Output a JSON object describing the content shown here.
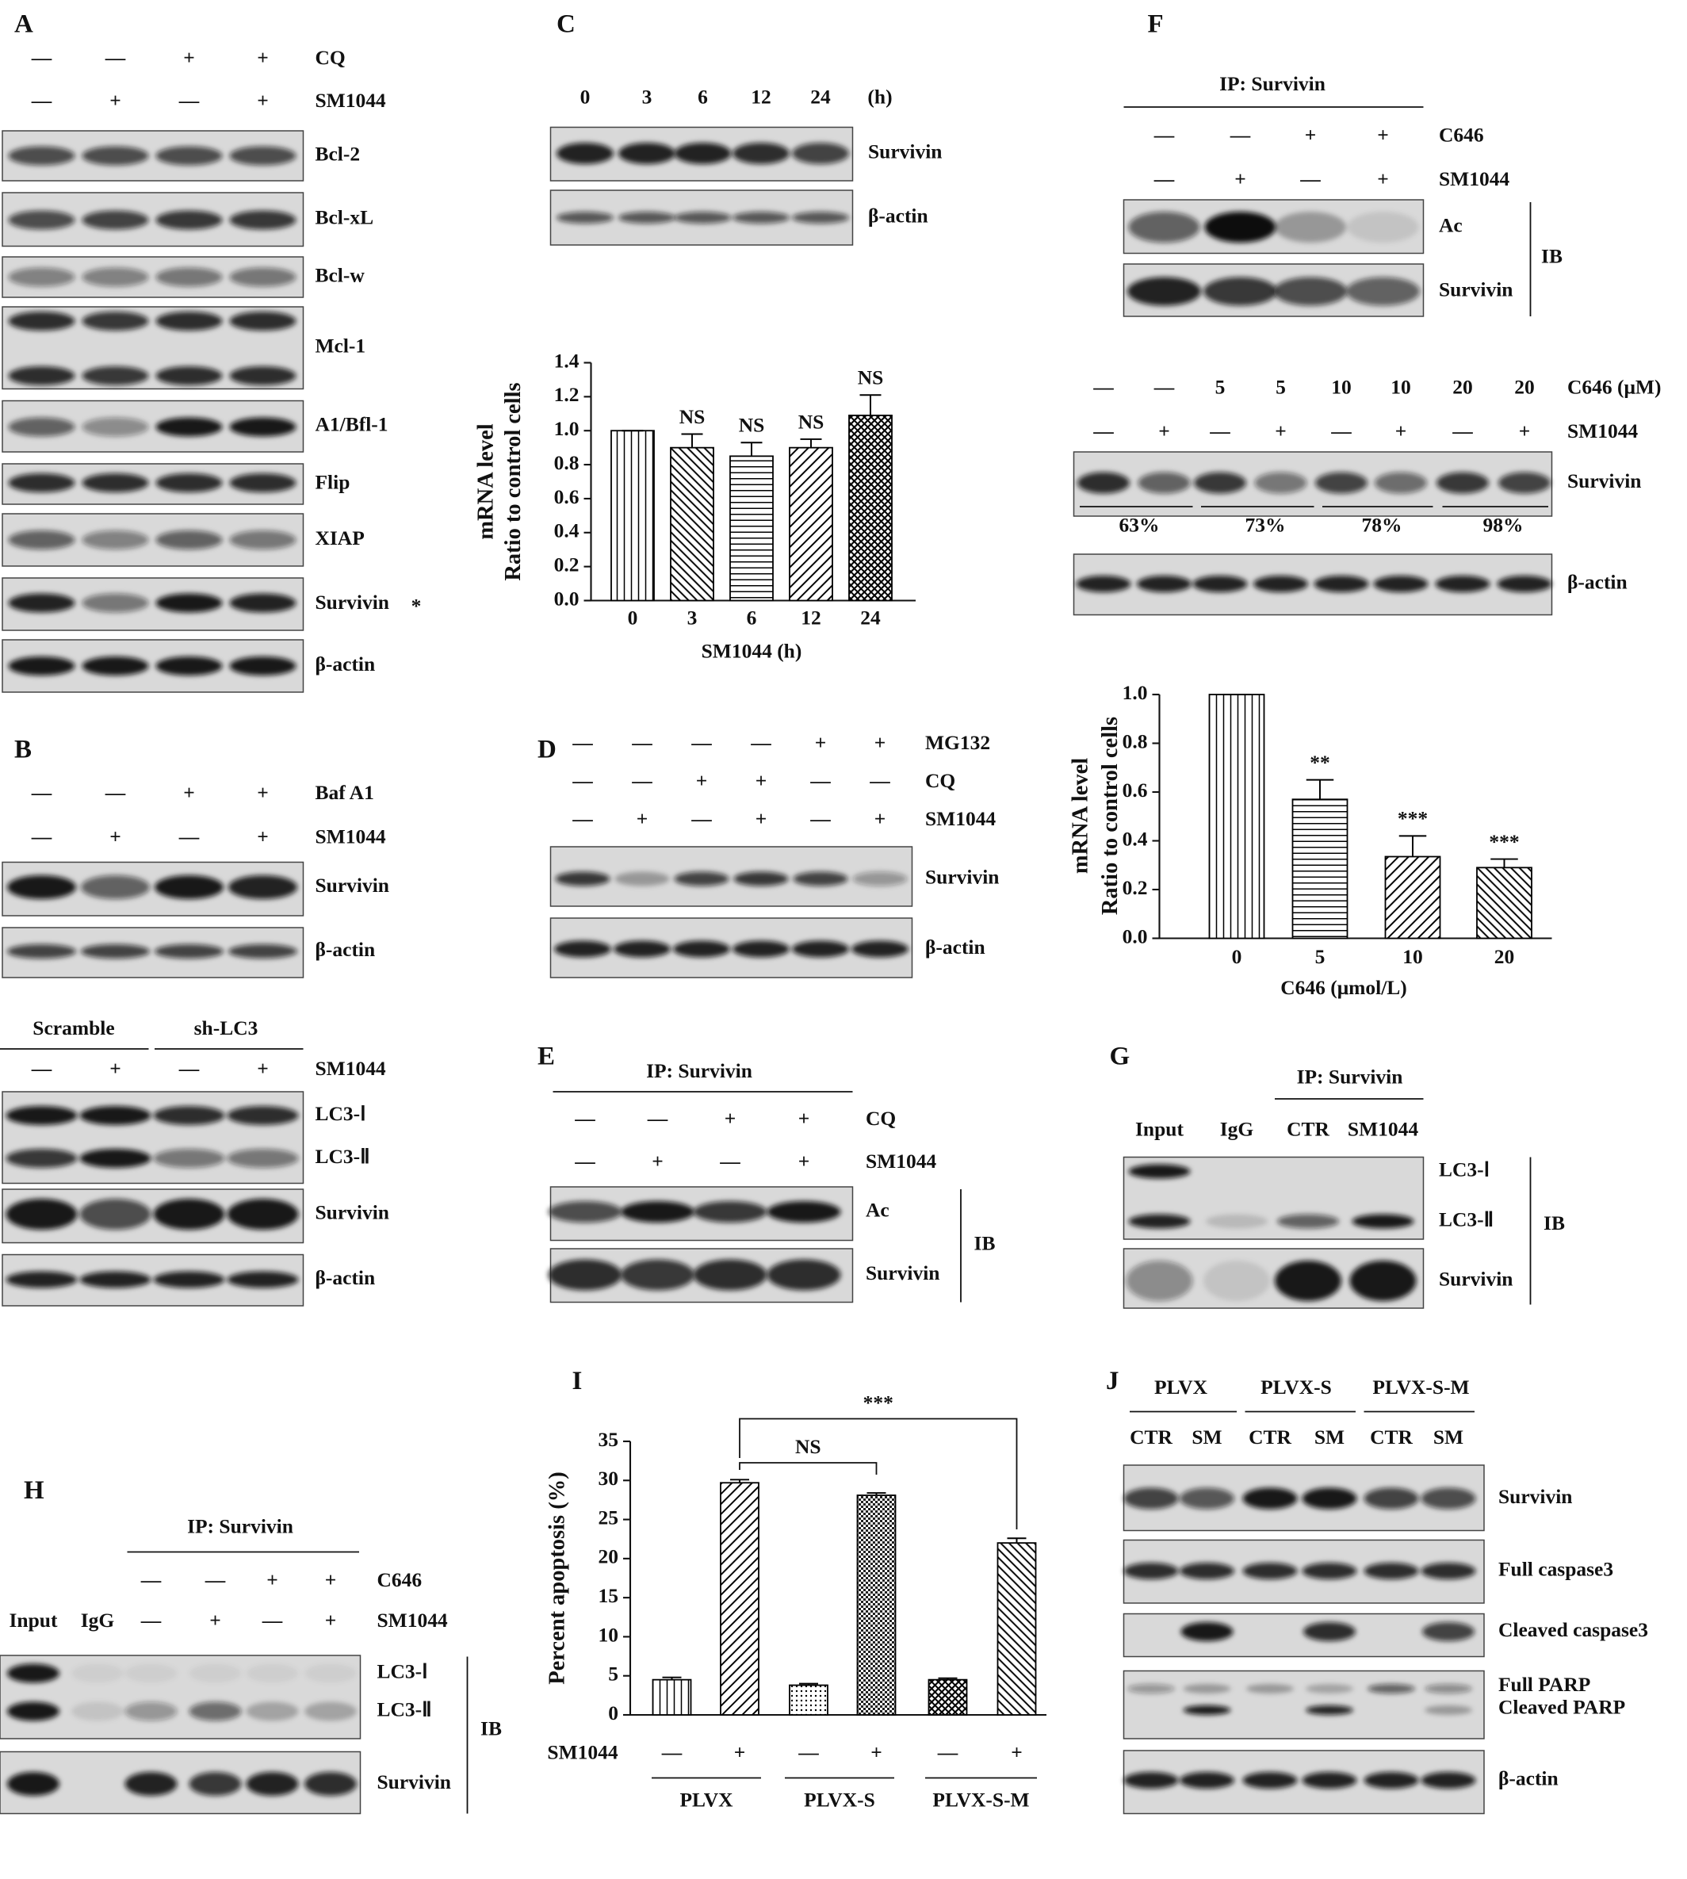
{
  "panels": {
    "A": {
      "label": "A",
      "conditions": [
        {
          "name": "CQ",
          "signs": [
            "—",
            "—",
            "+",
            "+"
          ]
        },
        {
          "name": "SM1044",
          "signs": [
            "—",
            "+",
            "—",
            "+"
          ]
        }
      ],
      "blots": [
        {
          "name": "Bcl-2"
        },
        {
          "name": "Bcl-xL"
        },
        {
          "name": "Bcl-w"
        },
        {
          "name": "Mcl-1"
        },
        {
          "name": "A1/Bfl-1"
        },
        {
          "name": "Flip"
        },
        {
          "name": "XIAP"
        },
        {
          "name": "Survivin",
          "marker": "*"
        },
        {
          "name": "β-actin"
        }
      ]
    },
    "B": {
      "label": "B",
      "conditions": [
        {
          "name": "Baf A1",
          "signs": [
            "—",
            "—",
            "+",
            "+"
          ]
        },
        {
          "name": "SM1044",
          "signs": [
            "—",
            "+",
            "—",
            "+"
          ]
        }
      ],
      "blots": [
        "Survivin",
        "β-actin"
      ],
      "knockdown": {
        "groups": [
          "Scramble",
          "sh-LC3"
        ],
        "conditions": [
          {
            "name": "SM1044",
            "signs": [
              "—",
              "+",
              "—",
              "+"
            ]
          }
        ],
        "blots": [
          "LC3-Ⅰ",
          "LC3-Ⅱ",
          "Survivin",
          "β-actin"
        ]
      }
    },
    "C": {
      "label": "C",
      "lanes": [
        "0",
        "3",
        "6",
        "12",
        "24"
      ],
      "unit": "(h)",
      "blots": [
        "Survivin",
        "β-actin"
      ]
    },
    "D": {
      "label": "D",
      "conditions": [
        {
          "name": "MG132",
          "signs": [
            "—",
            "—",
            "—",
            "—",
            "+",
            "+"
          ]
        },
        {
          "name": "CQ",
          "signs": [
            "—",
            "—",
            "+",
            "+",
            "—",
            "—"
          ]
        },
        {
          "name": "SM1044",
          "signs": [
            "—",
            "+",
            "—",
            "+",
            "—",
            "+"
          ]
        }
      ],
      "blots": [
        "Survivin",
        "β-actin"
      ]
    },
    "E": {
      "label": "E",
      "ip": "IP: Survivin",
      "conditions": [
        {
          "name": "CQ",
          "signs": [
            "—",
            "—",
            "+",
            "+"
          ]
        },
        {
          "name": "SM1044",
          "signs": [
            "—",
            "+",
            "—",
            "+"
          ]
        }
      ],
      "blots": [
        "Ac",
        "Survivin"
      ],
      "ib": "IB"
    },
    "F": {
      "label": "F",
      "ip": "IP: Survivin",
      "conditions": [
        {
          "name": "C646",
          "signs": [
            "—",
            "—",
            "+",
            "+"
          ]
        },
        {
          "name": "SM1044",
          "signs": [
            "—",
            "+",
            "—",
            "+"
          ]
        }
      ],
      "blots": [
        "Ac",
        "Survivin"
      ],
      "ib": "IB",
      "dose": {
        "conditions": [
          {
            "name": "C646 (μM)",
            "signs": [
              "—",
              "—",
              "5",
              "5",
              "10",
              "10",
              "20",
              "20"
            ]
          },
          {
            "name": "SM1044",
            "signs": [
              "—",
              "+",
              "—",
              "+",
              "—",
              "+",
              "—",
              "+"
            ]
          }
        ],
        "blots": [
          "Survivin",
          "β-actin"
        ],
        "ratios": [
          "63%",
          "73%",
          "78%",
          "98%"
        ]
      }
    },
    "G": {
      "label": "G",
      "ip": "IP: Survivin",
      "lanes": [
        "Input",
        "IgG",
        "CTR",
        "SM1044"
      ],
      "blots": [
        "LC3-Ⅰ",
        "LC3-Ⅱ",
        "Survivin"
      ],
      "ib": "IB"
    },
    "H": {
      "label": "H",
      "ip": "IP: Survivin",
      "controls": [
        "Input",
        "IgG"
      ],
      "conditions": [
        {
          "name": "C646",
          "signs": [
            "—",
            "—",
            "+",
            "+"
          ]
        },
        {
          "name": "SM1044",
          "signs": [
            "—",
            "+",
            "—",
            "+"
          ]
        }
      ],
      "blots": [
        "LC3-Ⅰ",
        "LC3-Ⅱ",
        "Survivin"
      ],
      "ib": "IB"
    },
    "I": {
      "label": "I"
    },
    "J": {
      "label": "J",
      "groups": [
        "PLVX",
        "PLVX-S",
        "PLVX-S-M"
      ],
      "lanes": [
        "CTR",
        "SM",
        "CTR",
        "SM",
        "CTR",
        "SM"
      ],
      "blots": [
        "Survivin",
        "Full caspase3",
        "Cleaved caspase3",
        "Full PARP",
        "Cleaved PARP",
        "β-actin"
      ]
    }
  },
  "chart_data": [
    {
      "type": "bar",
      "ylabel": [
        "mRNA level",
        "Ratio to control cells"
      ],
      "xlabel": "SM1044 (h)",
      "categories": [
        "0",
        "3",
        "6",
        "12",
        "24"
      ],
      "values": [
        1.0,
        0.9,
        0.85,
        0.9,
        1.09
      ],
      "errors": [
        0,
        0.08,
        0.08,
        0.05,
        0.12
      ],
      "annotations": [
        null,
        "NS",
        "NS",
        "NS",
        "NS"
      ],
      "color": "#000000",
      "ylim": [
        0,
        1.4
      ],
      "yticks": [
        {
          "value": 0,
          "label": "0.0"
        },
        0.2,
        0.4,
        0.6,
        0.8,
        {
          "value": 1,
          "label": "1.0"
        },
        1.2,
        1.4
      ]
    },
    {
      "type": "bar",
      "ylabel": [
        "mRNA level",
        "Ratio to control cells"
      ],
      "xlabel": "C646 (μmol/L)",
      "categories": [
        "0",
        "5",
        "10",
        "20"
      ],
      "values": [
        1.0,
        0.57,
        0.335,
        0.29
      ],
      "errors": [
        0,
        0.08,
        0.085,
        0.035
      ],
      "annotations": [
        null,
        "**",
        "***",
        "***"
      ],
      "color": "#000000",
      "ylim": [
        0,
        1.0
      ],
      "yticks": [
        {
          "value": 0,
          "label": "0.0"
        },
        0.2,
        0.4,
        0.6,
        0.8,
        {
          "value": 1,
          "label": "1.0"
        }
      ]
    },
    {
      "type": "bar",
      "ylabel": [
        "Percent apoptosis (%)"
      ],
      "x_title": "SM1044",
      "categories": [
        "—",
        "+",
        "—",
        "+",
        "—",
        "+"
      ],
      "groups": [
        "PLVX",
        "PLVX-S",
        "PLVX-S-M"
      ],
      "values": [
        4.5,
        29.7,
        3.8,
        28.1,
        4.5,
        22.0
      ],
      "errors": [
        0.3,
        0.4,
        0.2,
        0.3,
        0.2,
        0.6
      ],
      "comparisons": [
        {
          "label": "NS"
        },
        {
          "label": "***"
        }
      ],
      "color": "#000000",
      "ylim": [
        0,
        35
      ],
      "yticks": [
        0,
        5,
        10,
        15,
        20,
        25,
        30,
        35
      ]
    }
  ]
}
